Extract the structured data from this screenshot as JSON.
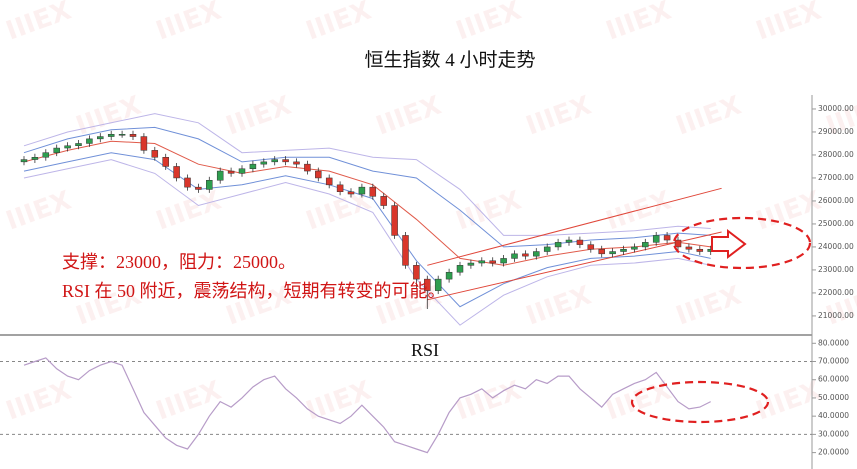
{
  "watermark": "IIIEX",
  "chart_data": [
    {
      "type": "candlestick",
      "title": "恒生指数 4 小时走势",
      "open": [
        27700,
        27800,
        27900,
        28100,
        28300,
        28400,
        28500,
        28700,
        28800,
        28900,
        28900,
        28800,
        28200,
        27900,
        27500,
        27000,
        26600,
        26500,
        26900,
        27300,
        27200,
        27400,
        27600,
        27700,
        27800,
        27700,
        27600,
        27300,
        27000,
        26700,
        26400,
        26300,
        26600,
        26200,
        25800,
        24500,
        23200,
        22600,
        22100,
        22600,
        22900,
        23200,
        23300,
        23400,
        23300,
        23500,
        23700,
        23600,
        23800,
        24000,
        24200,
        24300,
        24100,
        23900,
        23700,
        23800,
        23900,
        24000,
        24200,
        24500,
        24300,
        24000,
        23900,
        23800
      ],
      "high": [
        27950,
        28050,
        28250,
        28450,
        28550,
        28650,
        28850,
        28950,
        29050,
        29050,
        29050,
        28950,
        28350,
        28050,
        27650,
        27150,
        26750,
        27050,
        27450,
        27450,
        27550,
        27750,
        27850,
        27950,
        27950,
        27850,
        27750,
        27450,
        27150,
        26850,
        26550,
        26750,
        26750,
        26350,
        25950,
        24650,
        23350,
        22750,
        22750,
        23050,
        23350,
        23450,
        23550,
        23550,
        23650,
        23850,
        23850,
        23950,
        24150,
        24350,
        24450,
        24450,
        24250,
        24050,
        23950,
        24050,
        24150,
        24350,
        24650,
        24650,
        24450,
        24150,
        24050,
        24050
      ],
      "low": [
        27550,
        27650,
        27750,
        27950,
        28150,
        28250,
        28350,
        28550,
        28650,
        28750,
        28650,
        28050,
        27750,
        27350,
        26850,
        26450,
        26350,
        26350,
        26750,
        27050,
        27050,
        27250,
        27450,
        27550,
        27550,
        27450,
        27150,
        26850,
        26550,
        26250,
        26150,
        26150,
        26050,
        25650,
        24350,
        23050,
        22200,
        21300,
        21950,
        22450,
        22750,
        23050,
        23150,
        23150,
        23150,
        23350,
        23450,
        23450,
        23650,
        23850,
        24050,
        23950,
        23750,
        23550,
        23550,
        23650,
        23750,
        23850,
        24050,
        24150,
        23850,
        23750,
        23650,
        23650
      ],
      "close": [
        27800,
        27900,
        28100,
        28300,
        28400,
        28500,
        28700,
        28800,
        28900,
        28900,
        28800,
        28200,
        27900,
        27500,
        27000,
        26600,
        26500,
        26900,
        27300,
        27200,
        27400,
        27600,
        27700,
        27800,
        27700,
        27600,
        27300,
        27000,
        26700,
        26400,
        26300,
        26600,
        26200,
        25800,
        24500,
        23200,
        22600,
        22100,
        22600,
        22900,
        23200,
        23300,
        23400,
        23300,
        23500,
        23700,
        23600,
        23800,
        24000,
        24200,
        24300,
        24100,
        23900,
        23700,
        23800,
        23900,
        24000,
        24200,
        24500,
        24300,
        24000,
        23900,
        23800,
        23900
      ],
      "up_color": "#2e9e4f",
      "down_color": "#d9362b",
      "band_x": [
        0,
        4,
        8,
        12,
        16,
        20,
        24,
        28,
        32,
        36,
        40,
        44,
        48,
        52,
        56,
        60,
        63
      ],
      "bands": [
        {
          "color": "#bdb5e8",
          "values": [
            28400,
            29000,
            29400,
            29800,
            29400,
            28100,
            28200,
            28300,
            27900,
            27800,
            26500,
            24500,
            24500,
            24600,
            24700,
            24900,
            24800
          ]
        },
        {
          "color": "#7090d8",
          "values": [
            28100,
            28700,
            29100,
            29200,
            28700,
            27700,
            27900,
            27900,
            27300,
            27000,
            25600,
            24000,
            24100,
            24300,
            24400,
            24600,
            24500
          ]
        },
        {
          "color": "#e05a4a",
          "values": [
            27700,
            28200,
            28600,
            28500,
            27600,
            27200,
            27500,
            27300,
            26700,
            25200,
            23500,
            23200,
            23600,
            23900,
            24000,
            24200,
            24000
          ]
        },
        {
          "color": "#7090d8",
          "values": [
            27300,
            27700,
            28100,
            27800,
            26500,
            26700,
            27100,
            26700,
            26100,
            23400,
            21400,
            22400,
            23100,
            23500,
            23600,
            23800,
            23500
          ]
        },
        {
          "color": "#bdb5e8",
          "values": [
            27000,
            27400,
            27800,
            27200,
            25800,
            26300,
            26800,
            26300,
            25500,
            22600,
            20600,
            21900,
            22700,
            23200,
            23300,
            23500,
            23200
          ]
        }
      ],
      "trendlines": [
        {
          "color": "#e0473a",
          "x": [
            37,
            64
          ],
          "values": [
            23200,
            26550
          ]
        },
        {
          "color": "#e0473a",
          "x": [
            37,
            64
          ],
          "values": [
            21700,
            24650
          ]
        }
      ],
      "ylim": [
        20170,
        30390
      ],
      "yticks": [
        {
          "value": 21000,
          "label": "21000.00"
        },
        {
          "value": 22000,
          "label": "22000.00"
        },
        {
          "value": 23000,
          "label": "23000.00"
        },
        {
          "value": 24000,
          "label": "24000.00"
        },
        {
          "value": 25000,
          "label": "25000.00"
        },
        {
          "value": 26000,
          "label": "26000.00"
        },
        {
          "value": 27000,
          "label": "27000.00"
        },
        {
          "value": 28000,
          "label": "28000.00"
        },
        {
          "value": 29000,
          "label": "29000.00"
        },
        {
          "value": 30000,
          "label": "30000.00"
        }
      ],
      "annotations": [
        "支撑：23000，阻力：25000。",
        "RSI 在 50 附近，震荡结构，短期有转变的可能。"
      ]
    },
    {
      "type": "line",
      "title": "RSI",
      "color": "#b79cc8",
      "values": [
        68,
        70,
        72,
        66,
        62,
        60,
        65,
        68,
        70,
        68,
        55,
        42,
        35,
        28,
        24,
        22,
        30,
        40,
        48,
        45,
        50,
        56,
        60,
        62,
        55,
        50,
        44,
        40,
        38,
        36,
        40,
        46,
        40,
        34,
        26,
        24,
        22,
        20,
        30,
        42,
        50,
        52,
        55,
        50,
        54,
        57,
        55,
        60,
        58,
        62,
        62,
        55,
        50,
        45,
        52,
        55,
        58,
        60,
        64,
        56,
        48,
        44,
        45,
        48
      ],
      "hlines": [
        70,
        30
      ],
      "ylim": [
        11,
        84
      ],
      "yticks": [
        {
          "value": 20,
          "label": "20.0000"
        },
        {
          "value": 30,
          "label": "30.0000"
        },
        {
          "value": 40,
          "label": "40.0000"
        },
        {
          "value": 50,
          "label": "50.0000"
        },
        {
          "value": 60,
          "label": "60.0000"
        },
        {
          "value": 70,
          "label": "70.0000"
        },
        {
          "value": 80,
          "label": "80.0000"
        }
      ]
    }
  ]
}
